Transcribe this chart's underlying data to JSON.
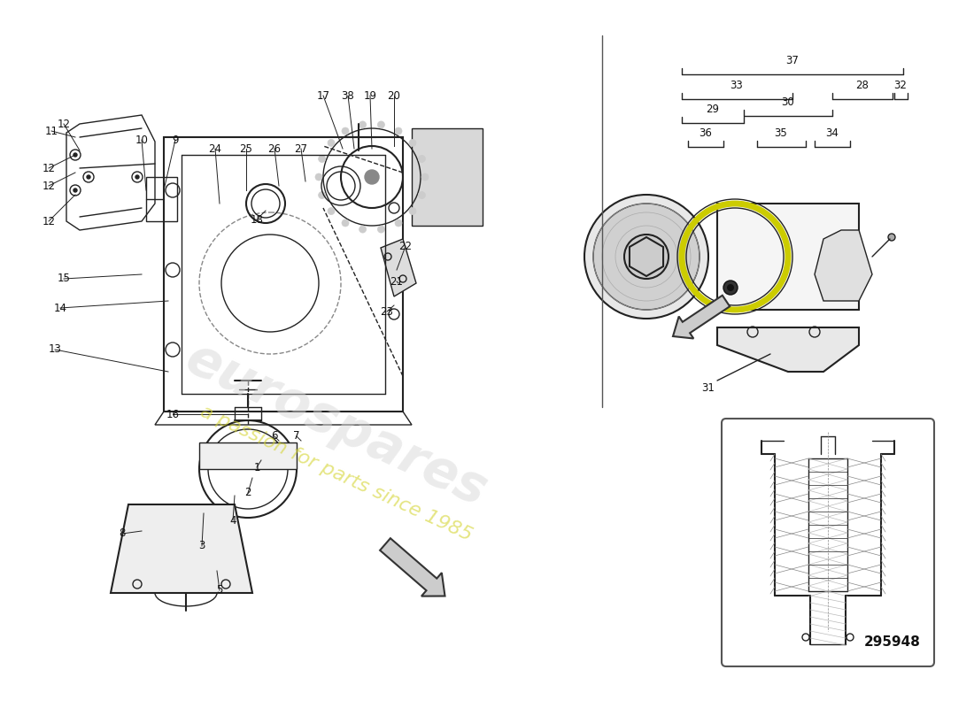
{
  "title": "",
  "background_color": "#ffffff",
  "watermark_text": "eurospares",
  "watermark_subtext": "a passion for parts since 1985",
  "part_number": "295948",
  "line_color": "#222222",
  "annotation_color": "#222222",
  "arrow_color": "#444444",
  "hatching_color": "#888888",
  "yellow_highlight": "#e8e840"
}
